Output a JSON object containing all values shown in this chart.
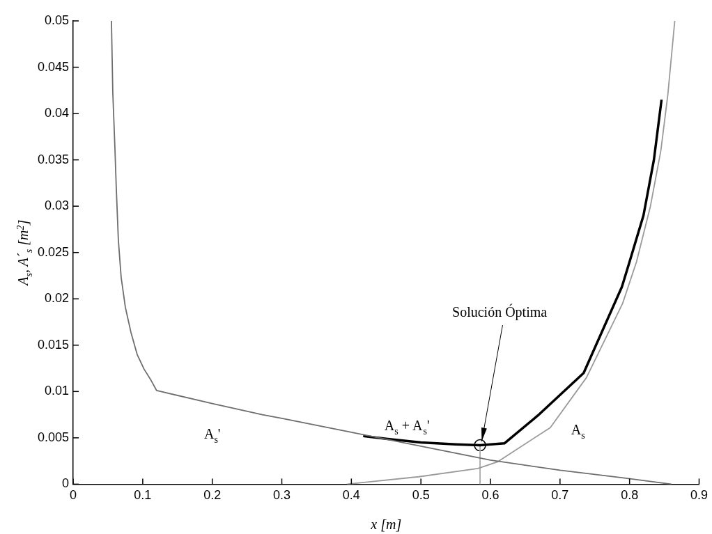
{
  "chart_data": {
    "type": "line",
    "xlabel": "x [m]",
    "ylabel": "A$_{s}$, A´$_{s}$ [m$^{2}$]",
    "xlim": [
      0,
      0.9
    ],
    "xticks": [
      0,
      0.1,
      0.2,
      0.3,
      0.4,
      0.5,
      0.6,
      0.7,
      0.8,
      0.9
    ],
    "ylim": [
      0,
      0.05
    ],
    "yticks": [
      0,
      0.005,
      0.01,
      0.015,
      0.02,
      0.025,
      0.03,
      0.035,
      0.04,
      0.045,
      0.05
    ],
    "legend": false,
    "marker": "none",
    "line_style": "solid",
    "series": [
      {
        "color": "#6e6e6e",
        "x": [
          0.055,
          0.057,
          0.06,
          0.062,
          0.065,
          0.069,
          0.075,
          0.083,
          0.092,
          0.102,
          0.112,
          0.12,
          0.2,
          0.272,
          0.3,
          0.4,
          0.5,
          0.6,
          0.7,
          0.789,
          0.86
        ],
        "values": [
          0.05,
          0.0422,
          0.0363,
          0.0319,
          0.0263,
          0.0223,
          0.0191,
          0.0164,
          0.014,
          0.0124,
          0.0112,
          0.0101,
          0.0087,
          0.0075,
          0.0071,
          0.0056,
          0.0041,
          0.0026,
          0.0015,
          0.0007,
          0
        ]
      },
      {
        "color": "#9a9a9a",
        "x": [
          0.394,
          0.497,
          0.582,
          0.61,
          0.686,
          0.738,
          0.79,
          0.81,
          0.83,
          0.845,
          0.855,
          0.865
        ],
        "values": [
          0,
          0.0008,
          0.0017,
          0.0024,
          0.0061,
          0.0115,
          0.0195,
          0.024,
          0.03,
          0.036,
          0.042,
          0.05
        ]
      },
      {
        "color": "#000000",
        "x": [
          0.417,
          0.45,
          0.5,
          0.55,
          0.585,
          0.62,
          0.668,
          0.734,
          0.789,
          0.8,
          0.82,
          0.835,
          0.846
        ],
        "values": [
          0.0052,
          0.0049,
          0.0045,
          0.0043,
          0.0042,
          0.0044,
          0.0074,
          0.012,
          0.0213,
          0.024,
          0.029,
          0.035,
          0.0415
        ]
      },
      {
        "color": "#aaaaaa",
        "x": [
          0.585,
          0.585
        ],
        "values": [
          0,
          0.0042
        ]
      },
      {
        "type": "scatter",
        "marker": "circle",
        "color": "#000000",
        "x": [
          0.585
        ],
        "values": [
          0.0042
        ]
      }
    ],
    "annotations": [
      {
        "text": "A$_{s}$'",
        "x": 0.2,
        "y": 0.0087
      },
      {
        "text": "A$_{s}$ + A$_{s}$'",
        "x": 0.5,
        "y": 0.0045
      },
      {
        "text": "A$_{s}$",
        "x": 0.686,
        "y": 0.0061
      },
      {
        "text": "Solución Óptima",
        "x": 0.585,
        "y": 0.0042
      }
    ]
  }
}
